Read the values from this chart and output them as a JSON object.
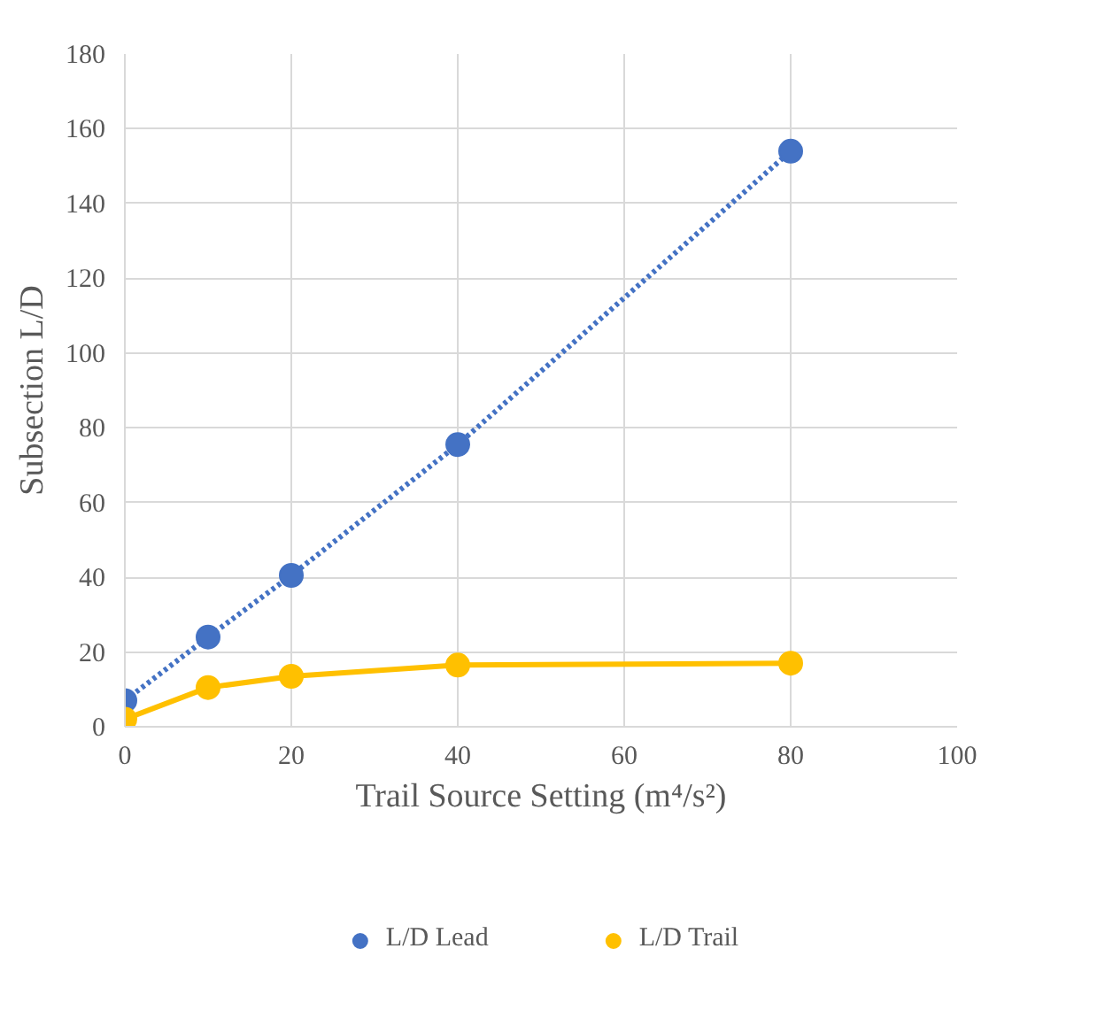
{
  "chart_data": {
    "type": "line",
    "xlabel": "Trail Source Setting (m⁴/s²)",
    "ylabel": "Subsection L/D",
    "x": [
      0,
      10,
      20,
      40,
      80
    ],
    "series": [
      {
        "name": "L/D Lead",
        "color": "#4472c4",
        "values": [
          7,
          24,
          40.5,
          75.5,
          154
        ],
        "line_style": "dotted"
      },
      {
        "name": "L/D Trail",
        "color": "#ffc000",
        "values": [
          2,
          10.5,
          13.5,
          16.5,
          17
        ],
        "line_style": "solid"
      }
    ],
    "xlim": [
      0,
      100
    ],
    "xticks": [
      0,
      20,
      40,
      60,
      80,
      100
    ],
    "ylim": [
      0,
      180
    ],
    "yticks": [
      0,
      20,
      40,
      60,
      80,
      100,
      120,
      140,
      160,
      180
    ],
    "grid": true,
    "legend": "bottom",
    "marker": "circle"
  }
}
